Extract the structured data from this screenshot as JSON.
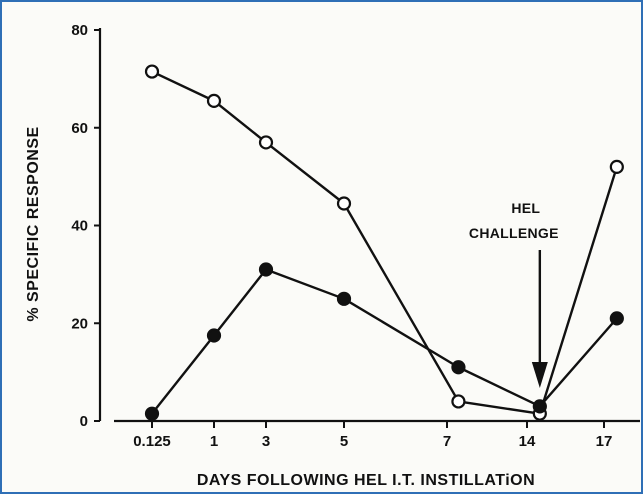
{
  "chart_data": {
    "type": "line",
    "xlabel": "DAYS FOLLOWING HEL I.T. INSTILLATiON",
    "ylabel": "% SPECIFIC RESPONSE",
    "categories": [
      "0.125",
      "1",
      "3",
      "5",
      "7",
      "14",
      "17"
    ],
    "ylim": [
      0,
      80
    ],
    "yticks": [
      "0",
      "20",
      "40",
      "60",
      "80"
    ],
    "grid": false,
    "series": [
      {
        "marker": "open-circle",
        "points": [
          {
            "x": 0.125,
            "y": 71.5
          },
          {
            "x": 1,
            "y": 65.5
          },
          {
            "x": 3,
            "y": 57
          },
          {
            "x": 5,
            "y": 44.5
          },
          {
            "x": 8,
            "y": 4
          },
          {
            "x": 14.5,
            "y": 1.5
          },
          {
            "x": 17.5,
            "y": 52
          }
        ]
      },
      {
        "marker": "filled-circle",
        "points": [
          {
            "x": 0.125,
            "y": 1.5
          },
          {
            "x": 1,
            "y": 17.5
          },
          {
            "x": 3,
            "y": 31
          },
          {
            "x": 5,
            "y": 25
          },
          {
            "x": 8,
            "y": 11
          },
          {
            "x": 14.5,
            "y": 3
          },
          {
            "x": 17.5,
            "y": 21
          }
        ]
      }
    ],
    "annotation": {
      "lines": [
        "HEL",
        "CHALLENGE"
      ],
      "points_to_x": 14.5
    }
  }
}
